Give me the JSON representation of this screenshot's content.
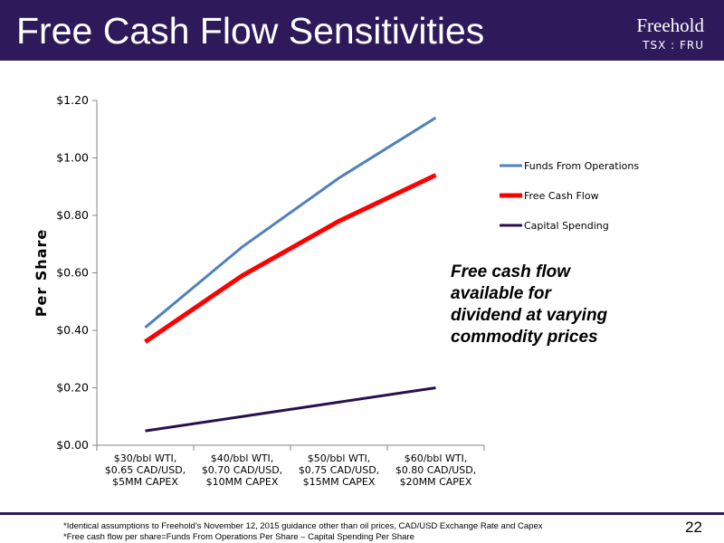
{
  "slide": {
    "title": "Free Cash Flow Sensitivities",
    "logo_text": "Freehold",
    "ticker": "TSX : FRU",
    "page_number": "22",
    "callout_lines": [
      "Free cash flow",
      "available for",
      "dividend at varying",
      "commodity prices"
    ],
    "footnotes": [
      "*Identical assumptions to Freehold’s November 12, 2015 guidance other than oil prices, CAD/USD Exchange Rate and Capex",
      "*Free cash flow per share=Funds From Operations Per Share – Capital Spending Per Share"
    ],
    "colors": {
      "header": "#2e1a5a",
      "header_text": "#ffffff"
    }
  },
  "chart_data": {
    "type": "line",
    "title": "",
    "xlabel": "",
    "ylabel": "Per Share",
    "ylim": [
      0,
      1.2
    ],
    "yticks": [
      0,
      0.2,
      0.4,
      0.6,
      0.8,
      1.0,
      1.2
    ],
    "ytick_labels": [
      "$0.00",
      "$0.20",
      "$0.40",
      "$0.60",
      "$0.80",
      "$1.00",
      "$1.20"
    ],
    "categories": [
      [
        "$30/bbl WTI,",
        "$0.65 CAD/USD,",
        "$5MM CAPEX"
      ],
      [
        "$40/bbl WTI,",
        "$0.70 CAD/USD,",
        "$10MM CAPEX"
      ],
      [
        "$50/bbl WTI,",
        "$0.75 CAD/USD,",
        "$15MM CAPEX"
      ],
      [
        "$60/bbl WTI,",
        "$0.80 CAD/USD,",
        "$20MM CAPEX"
      ]
    ],
    "series": [
      {
        "name": "Funds From Operations",
        "values": [
          0.41,
          0.69,
          0.93,
          1.14
        ],
        "color": "#4f81bd",
        "width": 3
      },
      {
        "name": "Free Cash Flow",
        "values": [
          0.36,
          0.59,
          0.78,
          0.94
        ],
        "color": "#ff0000",
        "width": 5
      },
      {
        "name": "Capital Spending",
        "values": [
          0.05,
          0.1,
          0.15,
          0.2
        ],
        "color": "#2a0f4e",
        "width": 3
      }
    ],
    "legend": "right",
    "grid": false
  }
}
